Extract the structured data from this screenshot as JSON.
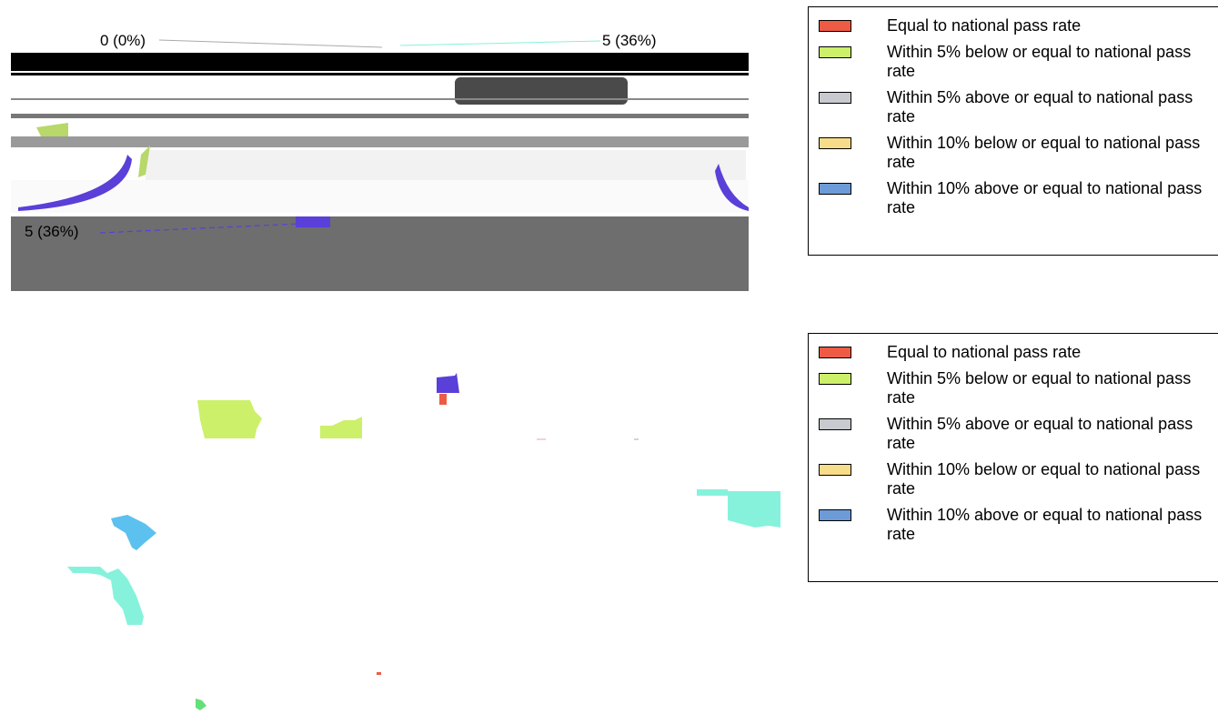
{
  "chart_data": [
    {
      "type": "pie",
      "title": "",
      "slice_labels": [
        "0 (0%)",
        "5 (36%)",
        "5 (36%)"
      ],
      "slices": [
        {
          "label": "0 (0%)",
          "value": 0,
          "percent": 0,
          "color": "#ee5b45"
        },
        {
          "label": "5 (36%)",
          "value": 5,
          "percent": 36,
          "color": "#ccf06a"
        },
        {
          "label": "5 (36%)",
          "value": 5,
          "percent": 36,
          "color": "#5a3fd8"
        }
      ],
      "legend_placement": "right"
    },
    {
      "type": "map",
      "title": "",
      "legend_placement": "right"
    }
  ],
  "legend": {
    "items": [
      {
        "label": "Equal to national pass rate",
        "color": "#ee5b45"
      },
      {
        "label": "Within 5% below or equal to national pass rate",
        "color": "#ccf06a"
      },
      {
        "label": "Within 5% above or equal to national pass rate",
        "color": "#c8cacf"
      },
      {
        "label": "Within 10% below or equal to national pass rate",
        "color": "#f7dc8a"
      },
      {
        "label": "Within 10% above or equal to national pass rate",
        "color": "#6c9bd8"
      }
    ]
  },
  "colors": {
    "dark_band": "#6e6e6e",
    "black_band": "#000000",
    "teal": "#86f2dc",
    "sky": "#5cc1ee",
    "green": "#63e07a",
    "purple": "#5a3fd8",
    "red": "#ee5b45",
    "lime": "#ccf06a"
  }
}
